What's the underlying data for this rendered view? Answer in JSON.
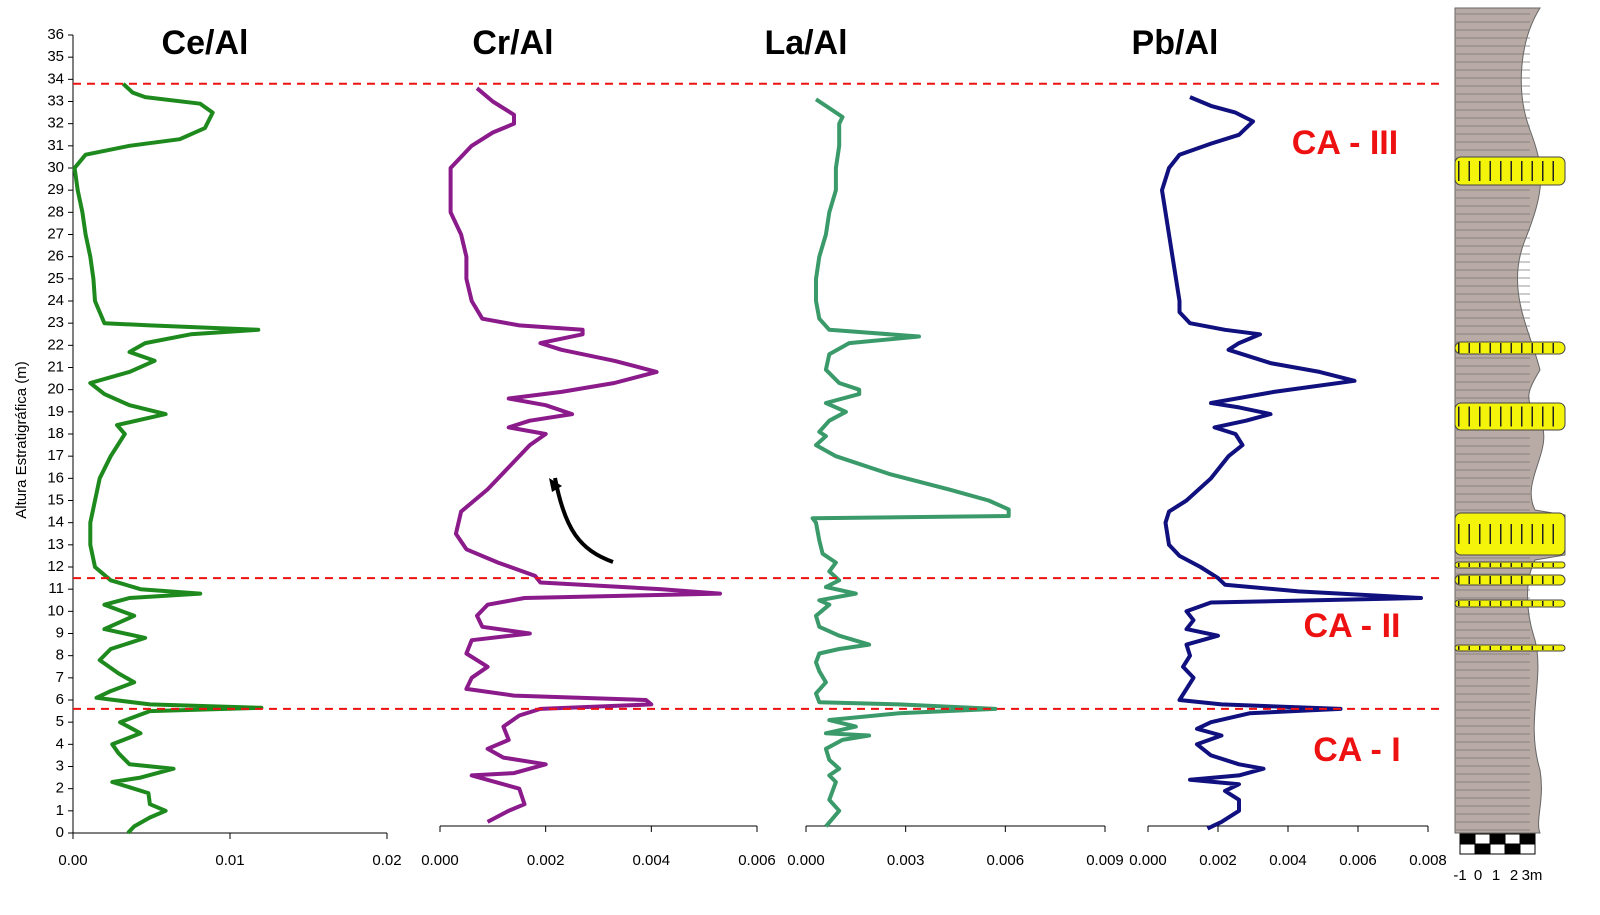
{
  "chart_data": [
    {
      "type": "line",
      "title": "Ce/Al",
      "color": "#1e8a1e",
      "ylabel": "Altura Estratigráfica (m)",
      "ylim": [
        0,
        36
      ],
      "yticks": [
        0,
        1,
        2,
        3,
        4,
        5,
        6,
        7,
        8,
        9,
        10,
        11,
        12,
        13,
        14,
        15,
        16,
        17,
        18,
        19,
        20,
        21,
        22,
        23,
        24,
        25,
        26,
        27,
        28,
        29,
        30,
        31,
        32,
        33,
        34,
        35,
        36
      ],
      "xlim": [
        0,
        0.02
      ],
      "xticks": [
        {
          "value": 0,
          "label": "0.00"
        },
        0.01,
        0.02
      ],
      "x": [
        0,
        0.3,
        0.7,
        1.0,
        1.3,
        1.8,
        2.3,
        2.5,
        2.9,
        3.1,
        3.6,
        4.0,
        4.5,
        5.0,
        5.5,
        5.65,
        5.8,
        6.1,
        6.4,
        6.8,
        7.2,
        7.8,
        8.3,
        8.8,
        9.2,
        9.8,
        10.3,
        10.6,
        10.8,
        11.0,
        11.4,
        12,
        13,
        14,
        15,
        16,
        17,
        18,
        18.4,
        18.9,
        19.3,
        19.8,
        20.3,
        20.8,
        21.3,
        21.7,
        22.1,
        22.5,
        22.7,
        22.9,
        23.0,
        23.5,
        24,
        25,
        26,
        27,
        28,
        29,
        30,
        30.6,
        31.0,
        31.3,
        31.8,
        32.5,
        32.9,
        33.2,
        33.4,
        33.8
      ],
      "values": [
        0.0035,
        0.0039,
        0.0049,
        0.0059,
        0.0049,
        0.0048,
        0.0025,
        0.0043,
        0.0064,
        0.0036,
        0.0029,
        0.0025,
        0.0043,
        0.003,
        0.0049,
        0.012,
        0.0049,
        0.0015,
        0.0024,
        0.0039,
        0.0029,
        0.0017,
        0.0024,
        0.0046,
        0.002,
        0.0039,
        0.002,
        0.0036,
        0.0081,
        0.0043,
        0.0024,
        0.0014,
        0.0011,
        0.0011,
        0.0014,
        0.0017,
        0.0024,
        0.0033,
        0.0028,
        0.0059,
        0.0036,
        0.002,
        0.0011,
        0.0036,
        0.0052,
        0.0036,
        0.0046,
        0.0075,
        0.0118,
        0.0049,
        0.002,
        0.0017,
        0.0014,
        0.0013,
        0.0011,
        0.0008,
        0.0006,
        0.0003,
        0.0001,
        0.0008,
        0.0036,
        0.0068,
        0.0084,
        0.0089,
        0.0081,
        0.0046,
        0.0038,
        0.0032
      ]
    },
    {
      "type": "line",
      "title": "Cr/Al",
      "color": "#8b1a8b",
      "ylim": [
        0,
        36
      ],
      "xlim": [
        0,
        0.006
      ],
      "xticks": [
        {
          "value": 0,
          "label": "0.000"
        },
        {
          "value": 0.002,
          "label": "0.002"
        },
        {
          "value": 0.004,
          "label": "0.004"
        },
        {
          "value": 0.006,
          "label": "0.006"
        }
      ],
      "x": [
        0.5,
        1.0,
        1.3,
        2.0,
        2.6,
        2.7,
        3.1,
        3.4,
        3.8,
        4.2,
        4.8,
        5.3,
        5.6,
        5.8,
        6.0,
        6.2,
        6.5,
        7.0,
        7.5,
        8.1,
        8.7,
        9.0,
        9.3,
        9.8,
        10.3,
        10.6,
        10.8,
        11.0,
        11.3,
        11.6,
        12.2,
        12.8,
        13.5,
        14.5,
        15.5,
        16.5,
        17.5,
        18.0,
        18.3,
        18.6,
        18.9,
        19.3,
        19.6,
        19.9,
        20.3,
        20.8,
        21.3,
        21.8,
        22.1,
        22.5,
        22.7,
        22.9,
        23.2,
        24,
        25,
        26,
        27,
        28,
        29,
        30,
        31,
        31.6,
        32,
        32.4,
        33,
        33.6
      ],
      "values": [
        0.0009,
        0.0013,
        0.0016,
        0.0015,
        0.0006,
        0.0014,
        0.002,
        0.0012,
        0.0009,
        0.0013,
        0.0012,
        0.0015,
        0.0019,
        0.004,
        0.0039,
        0.0014,
        0.0005,
        0.0006,
        0.0009,
        0.0005,
        0.0006,
        0.0017,
        0.0008,
        0.0007,
        0.0009,
        0.0016,
        0.0053,
        0.0042,
        0.0019,
        0.0018,
        0.0011,
        0.0005,
        0.0003,
        0.0004,
        0.0009,
        0.0013,
        0.0017,
        0.002,
        0.0013,
        0.0017,
        0.0025,
        0.002,
        0.0013,
        0.0023,
        0.0033,
        0.0041,
        0.0033,
        0.0023,
        0.0019,
        0.0027,
        0.0027,
        0.0015,
        0.0008,
        0.0006,
        0.0005,
        0.0005,
        0.0004,
        0.0002,
        0.0002,
        0.0002,
        0.0006,
        0.001,
        0.0014,
        0.0014,
        0.001,
        0.0007
      ]
    },
    {
      "type": "line",
      "title": "La/Al",
      "color": "#3a9a6a",
      "ylim": [
        0,
        36
      ],
      "xlim": [
        0,
        0.009
      ],
      "xticks": [
        {
          "value": 0,
          "label": "0.000"
        },
        {
          "value": 0.003,
          "label": "0.003"
        },
        {
          "value": 0.006,
          "label": "0.006"
        },
        {
          "value": 0.009,
          "label": "0.009"
        }
      ],
      "x": [
        0.3,
        1.0,
        1.5,
        2.3,
        2.6,
        2.9,
        3.3,
        3.8,
        4.2,
        4.4,
        4.5,
        4.8,
        5.1,
        5.4,
        5.6,
        5.8,
        5.9,
        6.3,
        6.8,
        7.3,
        7.7,
        8.1,
        8.3,
        8.5,
        8.9,
        9.3,
        9.8,
        10.3,
        10.5,
        10.8,
        11.1,
        11.4,
        11.8,
        12.2,
        12.6,
        13.2,
        14.0,
        14.2,
        14.3,
        14.6,
        15.0,
        15.5,
        16.2,
        17.0,
        17.5,
        17.9,
        18.1,
        18.6,
        19.0,
        19.4,
        19.8,
        20.0,
        20.3,
        20.9,
        21.6,
        22.1,
        22.4,
        22.6,
        22.7,
        23.2,
        24,
        25,
        26,
        27,
        28,
        29,
        30,
        31,
        32,
        32.3,
        32.7,
        33.1
      ],
      "values": [
        0.0006,
        0.001,
        0.0007,
        0.0009,
        0.0007,
        0.001,
        0.0007,
        0.0006,
        0.0011,
        0.0019,
        0.0006,
        0.0015,
        0.0007,
        0.0028,
        0.0057,
        0.0028,
        0.0004,
        0.0003,
        0.0006,
        0.0004,
        0.0003,
        0.0004,
        0.001,
        0.0019,
        0.001,
        0.0004,
        0.0003,
        0.0007,
        0.0004,
        0.0015,
        0.0006,
        0.001,
        0.0007,
        0.0009,
        0.0005,
        0.0004,
        0.0003,
        0.0002,
        0.0061,
        0.0061,
        0.0055,
        0.0043,
        0.0025,
        0.0009,
        0.0003,
        0.0006,
        0.0004,
        0.0007,
        0.0012,
        0.0006,
        0.0016,
        0.0016,
        0.001,
        0.0006,
        0.0007,
        0.0013,
        0.0034,
        0.0016,
        0.0007,
        0.0004,
        0.0003,
        0.0003,
        0.0004,
        0.0006,
        0.0007,
        0.0009,
        0.0009,
        0.001,
        0.001,
        0.0011,
        0.0007,
        0.0003
      ]
    },
    {
      "type": "line",
      "title": "Pb/Al",
      "color": "#10107f",
      "ylim": [
        0,
        36
      ],
      "xlim": [
        0,
        0.008
      ],
      "xticks": [
        {
          "value": 0,
          "label": "0.000"
        },
        {
          "value": 0.002,
          "label": "0.002"
        },
        {
          "value": 0.004,
          "label": "0.004"
        },
        {
          "value": 0.006,
          "label": "0.006"
        },
        {
          "value": 0.008,
          "label": "0.008"
        }
      ],
      "x": [
        0.2,
        0.5,
        1.0,
        1.5,
        1.9,
        2.2,
        2.4,
        2.6,
        2.9,
        3.1,
        3.5,
        4.0,
        4.4,
        4.7,
        5.0,
        5.4,
        5.6,
        5.8,
        6.0,
        6.5,
        7.0,
        7.5,
        8.0,
        8.5,
        8.9,
        9.2,
        9.6,
        10.0,
        10.4,
        10.6,
        10.9,
        11.2,
        11.5,
        12,
        12.5,
        13,
        14,
        14.5,
        15,
        16,
        17,
        17.5,
        18.0,
        18.3,
        18.6,
        18.9,
        19.2,
        19.4,
        19.9,
        20.4,
        20.8,
        21.2,
        21.8,
        22.1,
        22.5,
        22.7,
        23.0,
        23.5,
        24,
        25,
        26,
        27,
        28,
        29,
        30,
        30.6,
        31.1,
        31.5,
        32.1,
        32.5,
        32.8,
        33.2
      ],
      "values": [
        0.0017,
        0.0021,
        0.0026,
        0.0026,
        0.0022,
        0.0026,
        0.0012,
        0.0026,
        0.0033,
        0.0026,
        0.0018,
        0.0014,
        0.0021,
        0.0014,
        0.0018,
        0.0029,
        0.0055,
        0.0021,
        0.0009,
        0.0011,
        0.0013,
        0.001,
        0.0012,
        0.0011,
        0.002,
        0.0011,
        0.0013,
        0.0011,
        0.0018,
        0.0078,
        0.0043,
        0.0022,
        0.002,
        0.0015,
        0.0009,
        0.0006,
        0.0005,
        0.0006,
        0.0011,
        0.0018,
        0.0023,
        0.0027,
        0.0025,
        0.0019,
        0.0028,
        0.0035,
        0.0026,
        0.0018,
        0.0036,
        0.0059,
        0.0049,
        0.0035,
        0.0023,
        0.0026,
        0.0032,
        0.0022,
        0.0012,
        0.0009,
        0.0009,
        0.0008,
        0.0007,
        0.0006,
        0.0005,
        0.0004,
        0.0006,
        0.0009,
        0.0018,
        0.0026,
        0.003,
        0.0025,
        0.0018,
        0.0012
      ]
    }
  ],
  "stratigraphy": {
    "boundaries": [
      5.6,
      11.5,
      33.8
    ],
    "zones": [
      "CA - III",
      "CA - II",
      "CA - I"
    ],
    "scale_labels": [
      "-1",
      "0",
      "1",
      "2",
      "3m"
    ]
  }
}
